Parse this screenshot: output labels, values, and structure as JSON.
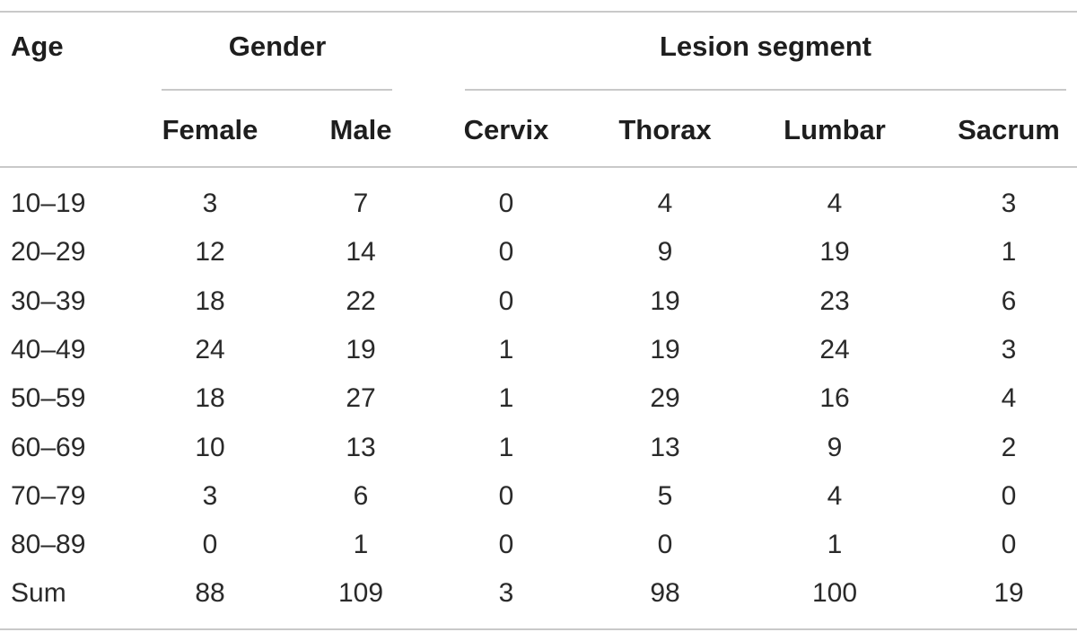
{
  "table": {
    "header_groups": {
      "age": "Age",
      "gender": "Gender",
      "lesion_segment": "Lesion segment"
    },
    "columns": [
      "Female",
      "Male",
      "Cervix",
      "Thorax",
      "Lumbar",
      "Sacrum"
    ],
    "rows": [
      {
        "age": "10–19",
        "values": [
          "3",
          "7",
          "0",
          "4",
          "4",
          "3"
        ]
      },
      {
        "age": "20–29",
        "values": [
          "12",
          "14",
          "0",
          "9",
          "19",
          "1"
        ]
      },
      {
        "age": "30–39",
        "values": [
          "18",
          "22",
          "0",
          "19",
          "23",
          "6"
        ]
      },
      {
        "age": "40–49",
        "values": [
          "24",
          "19",
          "1",
          "19",
          "24",
          "3"
        ]
      },
      {
        "age": "50–59",
        "values": [
          "18",
          "27",
          "1",
          "29",
          "16",
          "4"
        ]
      },
      {
        "age": "60–69",
        "values": [
          "10",
          "13",
          "1",
          "13",
          "9",
          "2"
        ]
      },
      {
        "age": "70–79",
        "values": [
          "3",
          "6",
          "0",
          "5",
          "4",
          "0"
        ]
      },
      {
        "age": "80–89",
        "values": [
          "0",
          "1",
          "0",
          "0",
          "1",
          "0"
        ]
      },
      {
        "age": "Sum",
        "values": [
          "88",
          "109",
          "3",
          "98",
          "100",
          "19"
        ]
      }
    ]
  }
}
